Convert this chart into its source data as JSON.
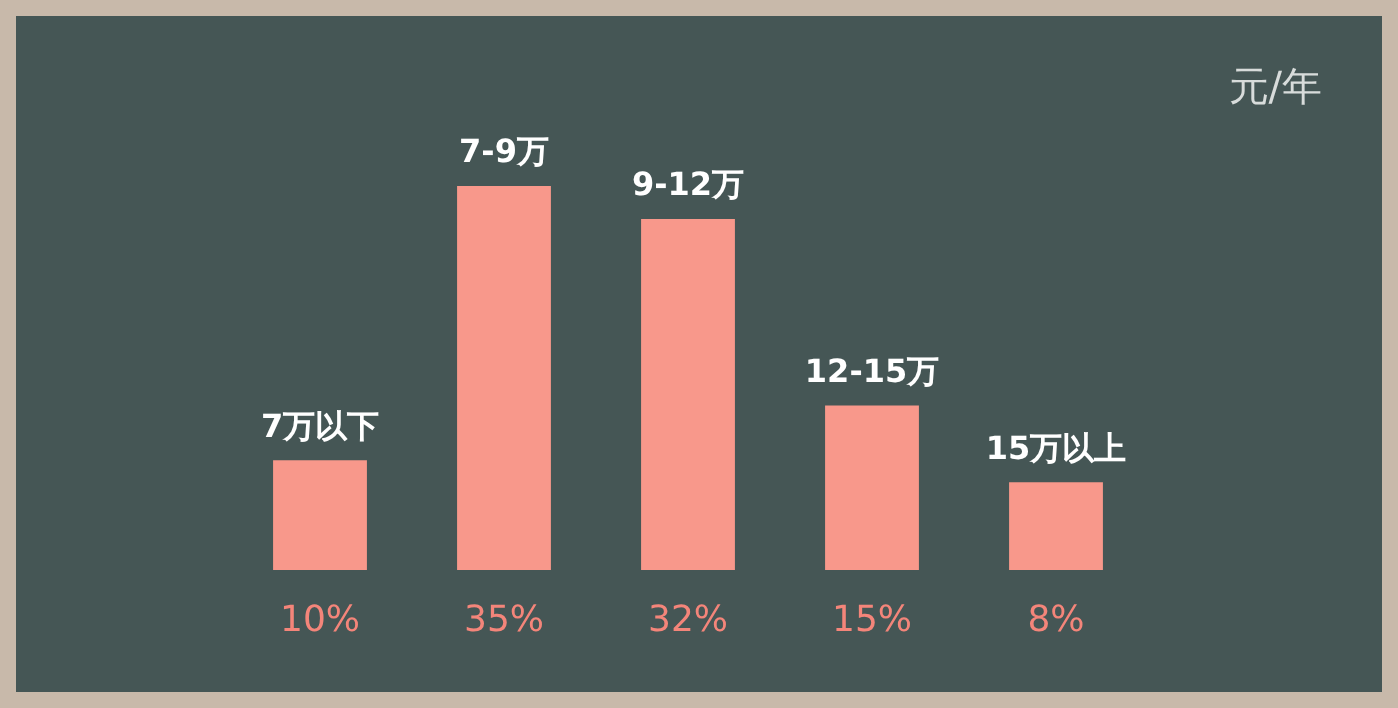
{
  "chart_data": {
    "type": "bar",
    "categories": [
      "7万以下",
      "7-9万",
      "9-12万",
      "12-15万",
      "15万以上"
    ],
    "values": [
      10,
      35,
      32,
      15,
      8
    ],
    "value_labels": [
      "10%",
      "35%",
      "32%",
      "15%",
      "8%"
    ],
    "color": "#f8988b",
    "annotations": [
      "元/年"
    ],
    "legend": false
  }
}
